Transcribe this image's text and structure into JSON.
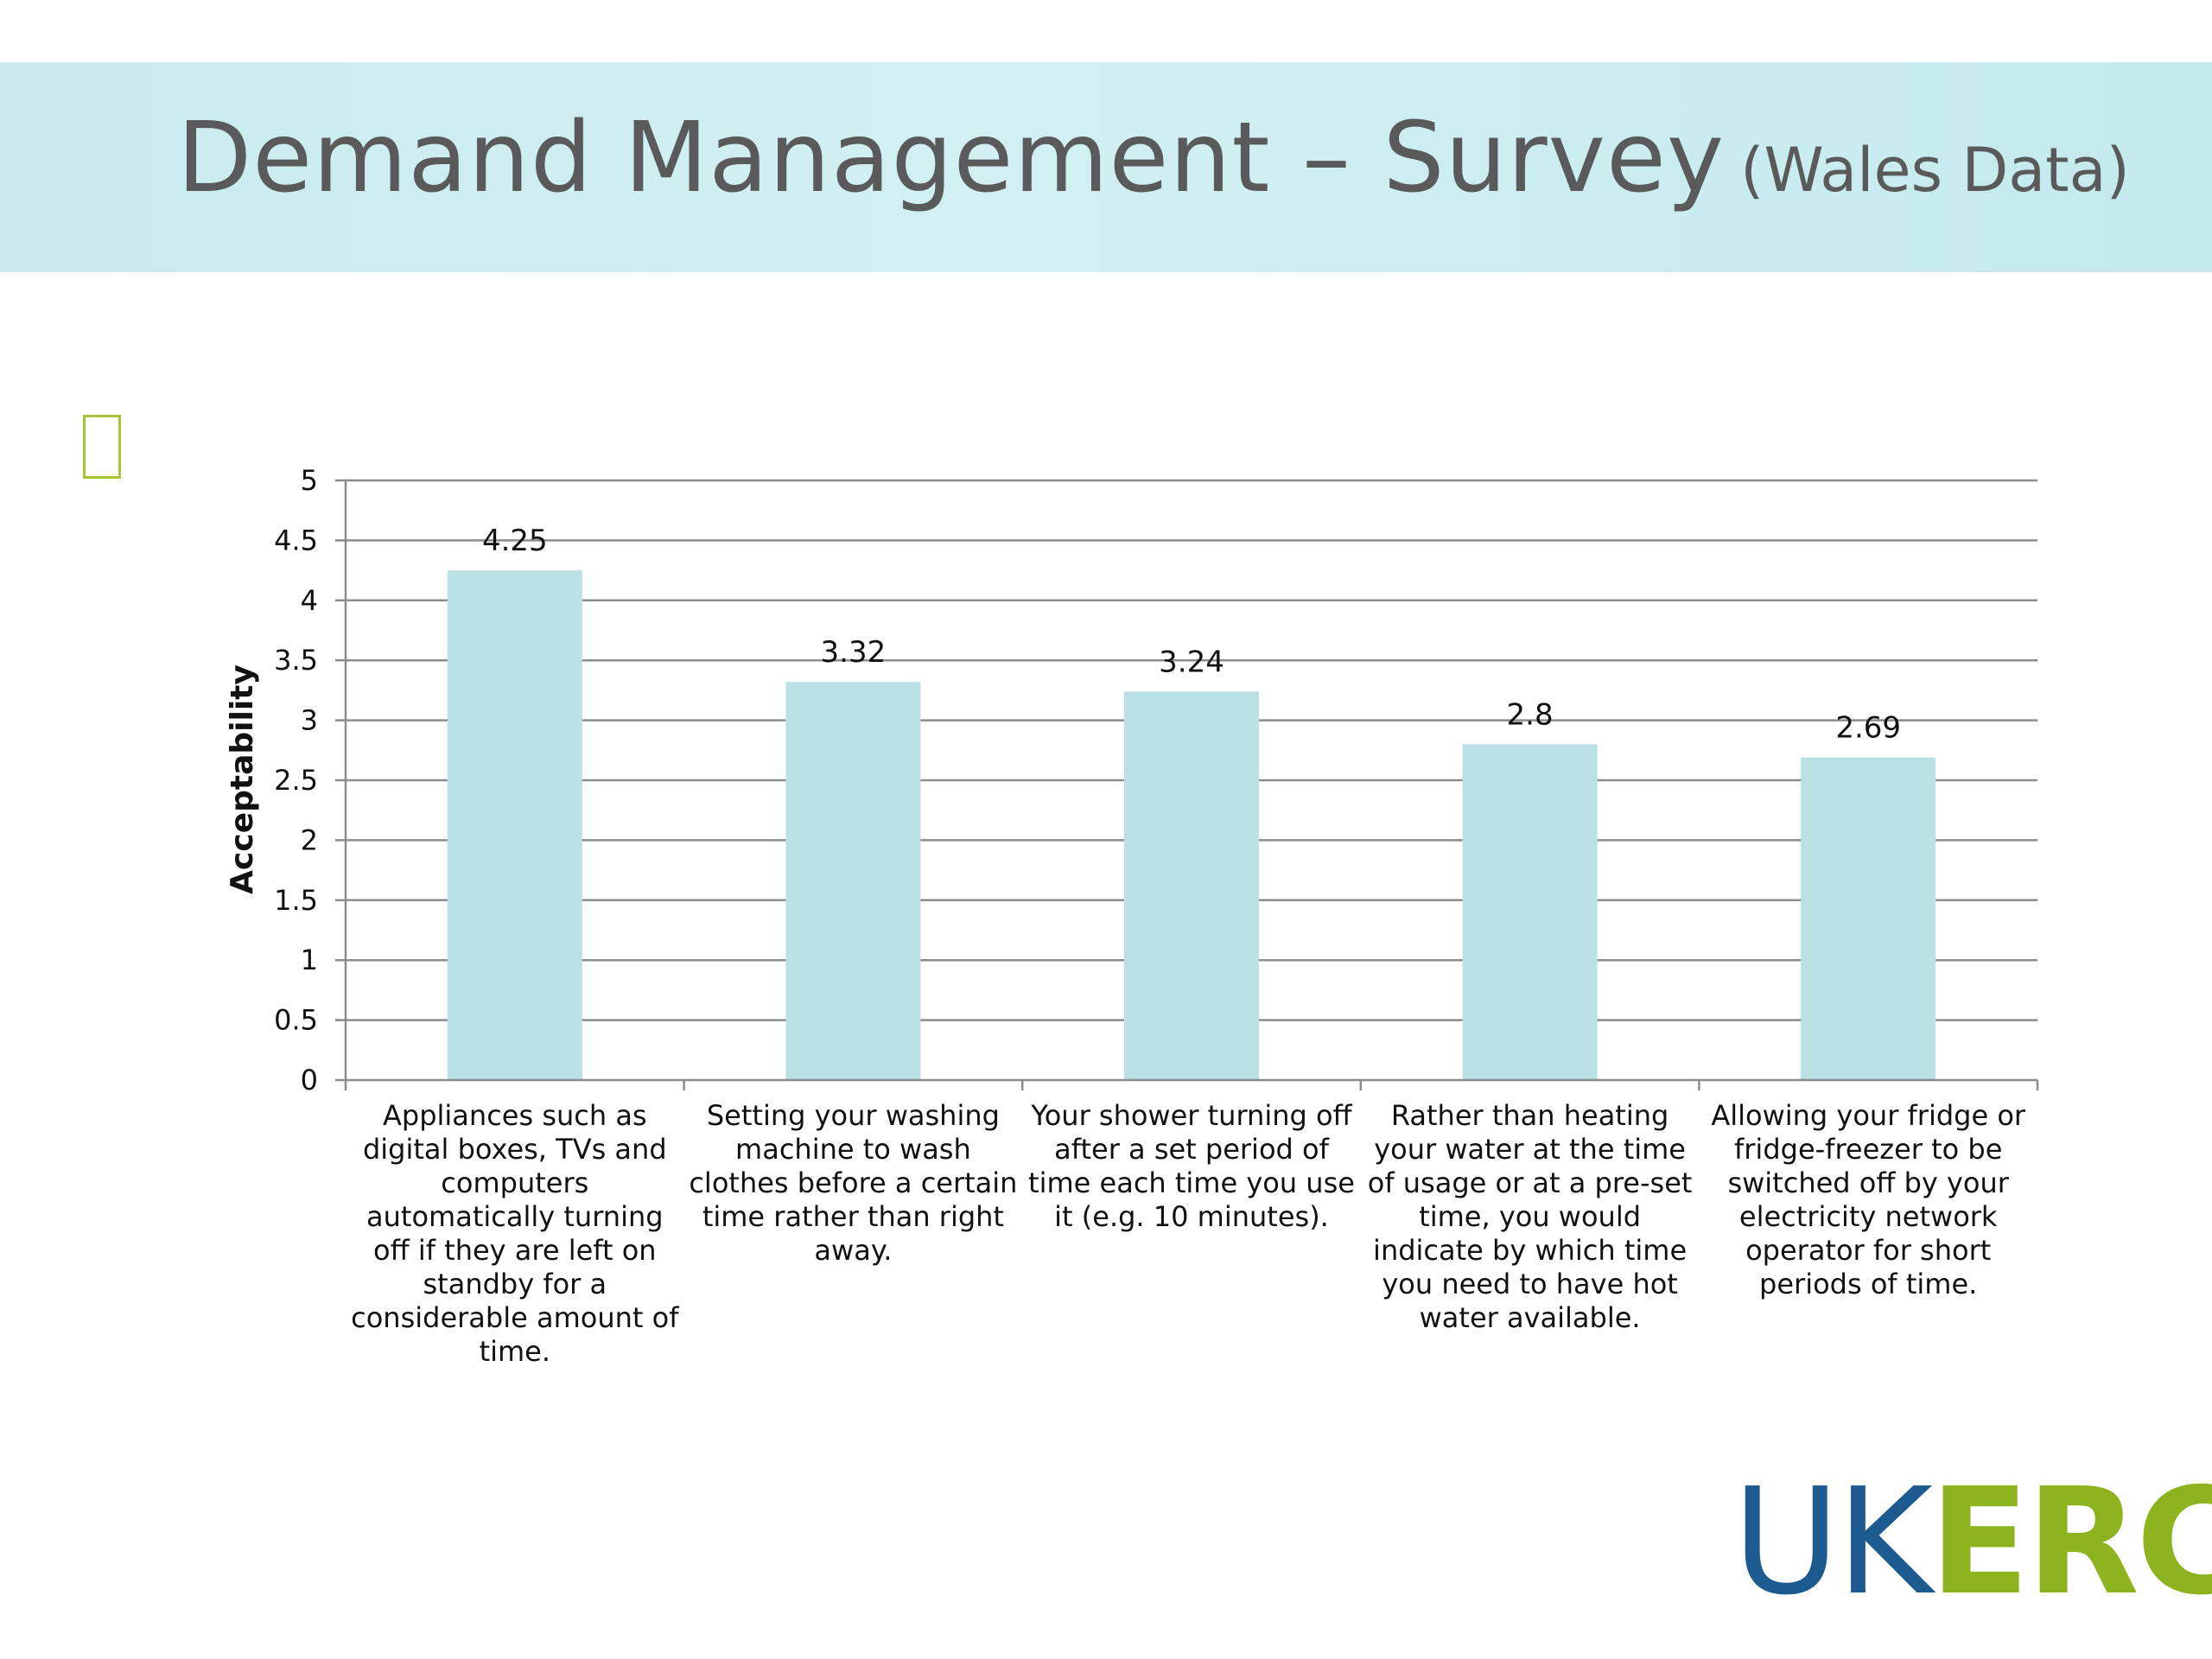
{
  "header": {
    "title": "Demand Management – Survey",
    "subtitle": "(Wales Data)"
  },
  "logo": {
    "part1": "UK",
    "part2": "ERC"
  },
  "colors": {
    "bar": "#b9e0e4",
    "grid": "#8c8c8c",
    "header_band": "#c9ecef",
    "logo_blue": "#1d5a8f",
    "logo_green": "#8db31f"
  },
  "chart_data": {
    "type": "bar",
    "title": "",
    "xlabel": "",
    "ylabel": "Acceptability",
    "ylim": [
      0,
      5
    ],
    "yticks": [
      "0",
      "0.5",
      "1",
      "1.5",
      "2",
      "2.5",
      "3",
      "3.5",
      "4",
      "4.5",
      "5"
    ],
    "grid": true,
    "categories": [
      "Appliances such as digital boxes, TVs and computers automatically turning off if they are left on standby for a considerable amount of time.",
      "Setting your washing machine to wash clothes before a certain time rather than right away.",
      "Your shower turning off after a set period of time each time you use it (e.g. 10 minutes).",
      "Rather than heating your water at the time of usage or at a pre-set time, you would indicate by which time you need to have hot water available.",
      "Allowing your fridge or fridge-freezer to be switched off by your electricity network operator for short periods of time."
    ],
    "values": [
      4.25,
      3.32,
      3.24,
      2.8,
      2.69
    ],
    "data_labels": [
      "4.25",
      "3.32",
      "3.24",
      "2.8",
      "2.69"
    ]
  }
}
